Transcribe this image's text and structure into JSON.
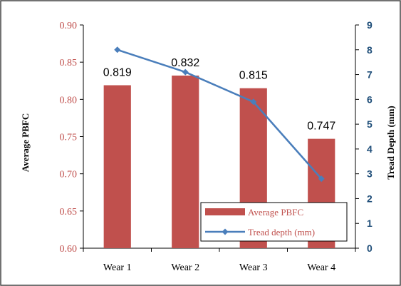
{
  "chart_data": {
    "type": "bar",
    "categories": [
      "Wear 1",
      "Wear 2",
      "Wear 3",
      "Wear 4"
    ],
    "series": [
      {
        "name": "Average PBFC",
        "type": "bar",
        "axis": "left",
        "values": [
          0.819,
          0.832,
          0.815,
          0.747
        ],
        "labels": [
          "0.819",
          "0.832",
          "0.815",
          "0.747"
        ],
        "color": "#c0504d"
      },
      {
        "name": "Tread depth (mm)",
        "type": "line",
        "axis": "right",
        "values": [
          8.0,
          7.1,
          5.9,
          2.8
        ],
        "color": "#4a7ebb"
      }
    ],
    "ylabel": "Average PBFC",
    "y2label": "Tread Depth (mm)",
    "xlabel": "",
    "ylim": [
      0.6,
      0.9
    ],
    "y2lim": [
      0,
      9
    ],
    "yticks": [
      "0.60",
      "0.65",
      "0.70",
      "0.75",
      "0.80",
      "0.85",
      "0.90"
    ],
    "y2ticks": [
      "0",
      "1",
      "2",
      "3",
      "4",
      "5",
      "6",
      "7",
      "8",
      "9"
    ],
    "grid": false,
    "legend": "bottom-right",
    "colors": {
      "left_axis_text": "#c0504d",
      "right_axis_text": "#1f4e79",
      "bar": "#c0504d",
      "line": "#4a7ebb",
      "legend_text": "#c0504d"
    }
  }
}
